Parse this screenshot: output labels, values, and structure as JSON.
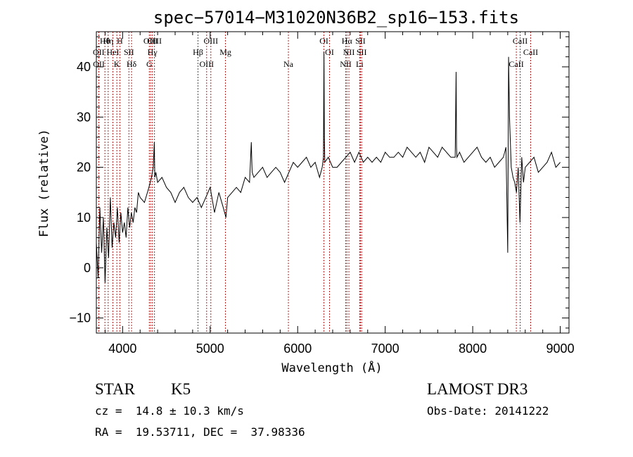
{
  "chart_data": {
    "type": "line",
    "title": "spec−57014−M31020N36B2_sp16−153.fits",
    "xlabel": "Wavelength (Å)",
    "ylabel": "Flux (relative)",
    "xlim": [
      3700,
      9100
    ],
    "ylim": [
      -13,
      47
    ],
    "xticks": [
      4000,
      5000,
      6000,
      7000,
      8000,
      9000
    ],
    "yticks": [
      -10,
      0,
      10,
      20,
      30,
      40
    ],
    "line_color": "#000000",
    "marker_color": "#b22222",
    "series": [
      {
        "x": [
          3700,
          3720,
          3740,
          3760,
          3780,
          3800,
          3820,
          3840,
          3860,
          3880,
          3900,
          3920,
          3940,
          3960,
          3980,
          4000,
          4020,
          4040,
          4060,
          4080,
          4100,
          4120,
          4140,
          4160,
          4180,
          4200,
          4250,
          4300,
          4330,
          4350,
          4362,
          4368,
          4380,
          4400,
          4450,
          4500,
          4550,
          4600,
          4650,
          4700,
          4750,
          4800,
          4850,
          4900,
          4950,
          5000,
          5050,
          5100,
          5150,
          5180,
          5200,
          5250,
          5300,
          5350,
          5400,
          5450,
          5470,
          5480,
          5500,
          5550,
          5600,
          5650,
          5700,
          5750,
          5800,
          5850,
          5900,
          5950,
          6000,
          6050,
          6100,
          6150,
          6200,
          6250,
          6280,
          6295,
          6300,
          6305,
          6310,
          6350,
          6400,
          6450,
          6500,
          6550,
          6600,
          6650,
          6700,
          6750,
          6800,
          6850,
          6900,
          6950,
          7000,
          7050,
          7100,
          7150,
          7200,
          7250,
          7300,
          7350,
          7400,
          7450,
          7500,
          7550,
          7600,
          7650,
          7700,
          7750,
          7800,
          7810,
          7815,
          7820,
          7850,
          7900,
          7950,
          8000,
          8050,
          8100,
          8150,
          8200,
          8250,
          8300,
          8350,
          8380,
          8400,
          8410,
          8420,
          8440,
          8460,
          8480,
          8500,
          8520,
          8540,
          8560,
          8580,
          8600,
          8650,
          8700,
          8750,
          8800,
          8850,
          8900,
          8950,
          9000
        ],
        "y": [
          5,
          -2,
          12,
          3,
          10,
          -3,
          8,
          2,
          14,
          4,
          9,
          6,
          12,
          5,
          11,
          7,
          9,
          6,
          12,
          8,
          11,
          9,
          12,
          11,
          15,
          14,
          13,
          16,
          18,
          20,
          25,
          18,
          19,
          17,
          18,
          16,
          15,
          13,
          15,
          16,
          14,
          13,
          14,
          12,
          14,
          16,
          11,
          15,
          12,
          10,
          14,
          15,
          16,
          15,
          18,
          17,
          25,
          19,
          18,
          19,
          20,
          18,
          19,
          20,
          19,
          17,
          19,
          21,
          20,
          21,
          22,
          20,
          21,
          18,
          20,
          22,
          43,
          26,
          21,
          22,
          20,
          20,
          21,
          22,
          23,
          21,
          23,
          21,
          22,
          21,
          22,
          21,
          23,
          22,
          22,
          23,
          22,
          24,
          23,
          22,
          23,
          21,
          24,
          23,
          22,
          24,
          23,
          22,
          22,
          39,
          24,
          22,
          23,
          21,
          22,
          23,
          24,
          22,
          21,
          22,
          20,
          21,
          22,
          24,
          3,
          42,
          30,
          20,
          18,
          17,
          15,
          20,
          9,
          22,
          17,
          20,
          21,
          22,
          19,
          20,
          21,
          23,
          20,
          21
        ]
      }
    ],
    "lines": [
      {
        "label": "Hθ",
        "x": 3798
      },
      {
        "label": "OII",
        "x": 3727
      },
      {
        "label": "OII",
        "x": 3729
      },
      {
        "label": "Hη",
        "x": 3835
      },
      {
        "label": "HeI",
        "x": 3889
      },
      {
        "label": "K",
        "x": 3934
      },
      {
        "label": "H",
        "x": 3969
      },
      {
        "label": "SII",
        "x": 4072
      },
      {
        "label": "Hδ",
        "x": 4102
      },
      {
        "label": "OIII",
        "x": 4320
      },
      {
        "label": "Hγ",
        "x": 4340
      },
      {
        "label": "G",
        "x": 4305
      },
      {
        "label": "OIII",
        "x": 4364
      },
      {
        "label": "Hβ",
        "x": 4861
      },
      {
        "label": "OIII",
        "x": 4960
      },
      {
        "label": "OIII",
        "x": 5008
      },
      {
        "label": "Mg",
        "x": 5175
      },
      {
        "label": "Na",
        "x": 5894
      },
      {
        "label": "OI",
        "x": 6300
      },
      {
        "label": "OI",
        "x": 6364
      },
      {
        "label": "NII",
        "x": 6549
      },
      {
        "label": "Hα",
        "x": 6563
      },
      {
        "label": "NII",
        "x": 6585
      },
      {
        "label": "Li",
        "x": 6708
      },
      {
        "label": "SII",
        "x": 6717
      },
      {
        "label": "SII",
        "x": 6731
      },
      {
        "label": "CaII",
        "x": 8498
      },
      {
        "label": "CaII",
        "x": 8542
      },
      {
        "label": "CaII",
        "x": 8662
      }
    ]
  },
  "info": {
    "object_class": "STAR",
    "subclass": "K5",
    "survey": "LAMOST DR3",
    "redshift": "cz =  14.8 ± 10.3 km/s",
    "obs_date": "Obs-Date: 20141222",
    "coords": "RA =  19.53711, DEC =  37.98336"
  }
}
